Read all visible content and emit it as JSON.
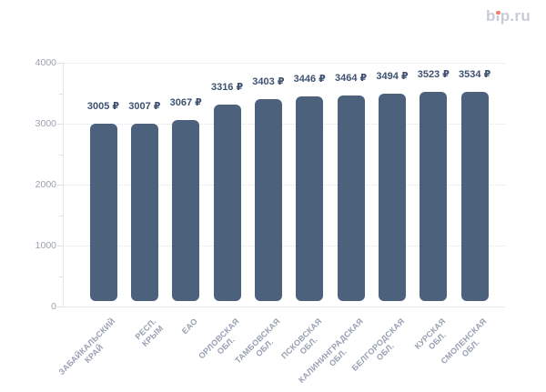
{
  "logo": {
    "text": "bip.ru",
    "color": "#c7ccda",
    "dot_color": "#eb826b"
  },
  "chart_data": {
    "type": "bar",
    "title": "",
    "xlabel": "",
    "ylabel": "",
    "categories": [
      [
        "ЗАБАЙКАЛЬСКИЙ",
        "КРАЙ"
      ],
      [
        "РЕСП. КРЫМ"
      ],
      [
        "ЕАО"
      ],
      [
        "ОРЛОВСКАЯ",
        "ОБЛ."
      ],
      [
        "ТАМБОВСКАЯ",
        "ОБЛ."
      ],
      [
        "ПСКОВСКАЯ",
        "ОБЛ."
      ],
      [
        "КАЛИНИНГРАДСКАЯ",
        "ОБЛ."
      ],
      [
        "БЕЛГОРОДСКАЯ",
        "ОБЛ."
      ],
      [
        "КУРСКАЯ ОБЛ."
      ],
      [
        "СМОЛЕНСКАЯ",
        "ОБЛ."
      ]
    ],
    "values": [
      3005,
      3007,
      3067,
      3316,
      3403,
      3446,
      3464,
      3494,
      3523,
      3534
    ],
    "value_suffix": " ₽",
    "y_ticks": [
      0,
      1000,
      2000,
      3000,
      4000
    ],
    "y_minor_step": 500,
    "ylim": [
      0,
      4000
    ],
    "grid": true,
    "legend": false,
    "bar_color": "#4c617c",
    "value_label_color": "#3e5170",
    "y_label_color": "#9ba1ae",
    "x_label_color": "#98a0b3",
    "gridline_color": "#dfe3e9"
  }
}
